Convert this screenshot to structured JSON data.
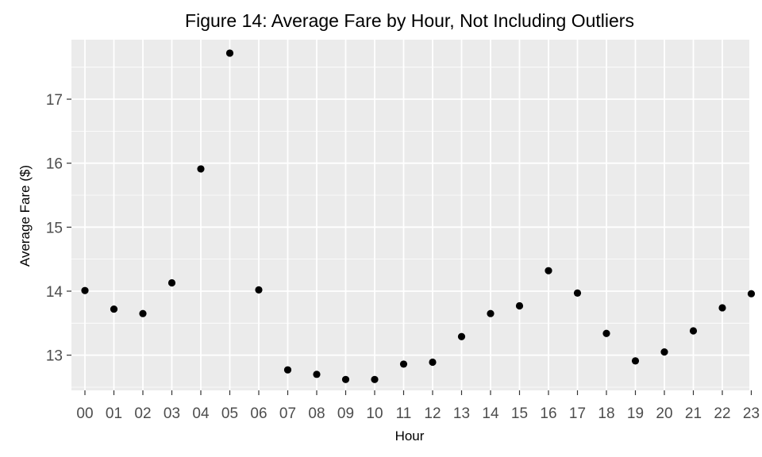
{
  "chart_data": {
    "type": "scatter",
    "title": "Figure 14: Average Fare by Hour, Not Including Outliers",
    "xlabel": "Hour",
    "ylabel": "Average Fare ($)",
    "categories": [
      "00",
      "01",
      "02",
      "03",
      "04",
      "05",
      "06",
      "07",
      "08",
      "09",
      "10",
      "11",
      "12",
      "13",
      "14",
      "15",
      "16",
      "17",
      "18",
      "19",
      "20",
      "21",
      "22",
      "23"
    ],
    "values": [
      14.01,
      13.72,
      13.65,
      14.13,
      15.91,
      17.72,
      14.02,
      12.77,
      12.7,
      12.62,
      12.62,
      12.86,
      12.89,
      13.29,
      13.65,
      13.77,
      14.32,
      13.97,
      13.34,
      12.91,
      13.05,
      13.38,
      13.74,
      13.96
    ],
    "ylim": [
      12.45,
      17.93
    ],
    "yticks": [
      13,
      14,
      15,
      16,
      17
    ],
    "grid": true,
    "legend": "none",
    "colors": {
      "panel": "#ebebeb",
      "grid": "#ffffff",
      "point": "#000000",
      "tick": "#333333",
      "tick_text": "#4d4d4d"
    }
  }
}
